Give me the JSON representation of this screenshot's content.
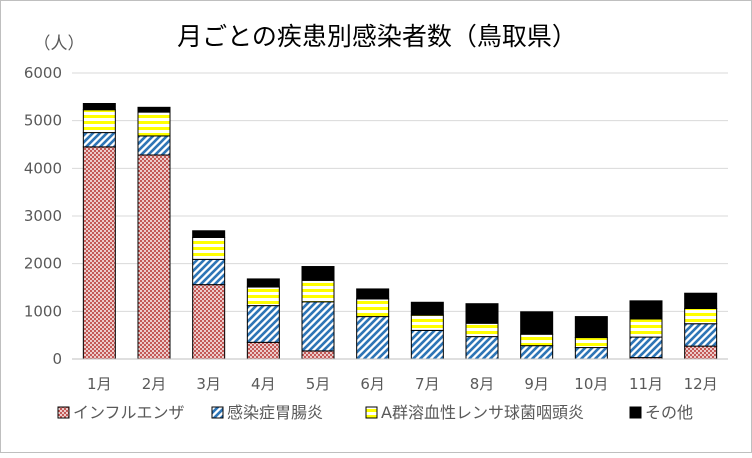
{
  "chart_data": {
    "type": "bar",
    "stacked": true,
    "title": "月ごとの疾患別感染者数（鳥取県）",
    "ylabel": "（人）",
    "xlabel": "",
    "ylim": [
      0,
      6000
    ],
    "yticks": [
      0,
      1000,
      2000,
      3000,
      4000,
      5000,
      6000
    ],
    "grid": true,
    "legend_position": "bottom",
    "categories": [
      "1月",
      "2月",
      "3月",
      "4月",
      "5月",
      "6月",
      "7月",
      "8月",
      "9月",
      "10月",
      "11月",
      "12月"
    ],
    "series": [
      {
        "name": "インフルエンザ",
        "pattern": "crosshatch",
        "color": "#c0504d",
        "values": [
          4450,
          4280,
          1560,
          350,
          170,
          0,
          0,
          0,
          0,
          0,
          30,
          270
        ]
      },
      {
        "name": "感染症胃腸炎",
        "pattern": "diagonal",
        "color": "#2e75b6",
        "values": [
          300,
          400,
          530,
          770,
          1030,
          890,
          600,
          470,
          280,
          240,
          430,
          470
        ]
      },
      {
        "name": "A群溶血性レンサ球菌咽頭炎",
        "pattern": "stripe",
        "color": "#ffff00",
        "values": [
          480,
          500,
          460,
          390,
          450,
          370,
          320,
          280,
          240,
          210,
          380,
          320
        ]
      },
      {
        "name": "その他",
        "pattern": "solid",
        "color": "#000000",
        "values": [
          130,
          100,
          140,
          170,
          290,
          210,
          270,
          410,
          470,
          440,
          380,
          320
        ]
      }
    ]
  }
}
